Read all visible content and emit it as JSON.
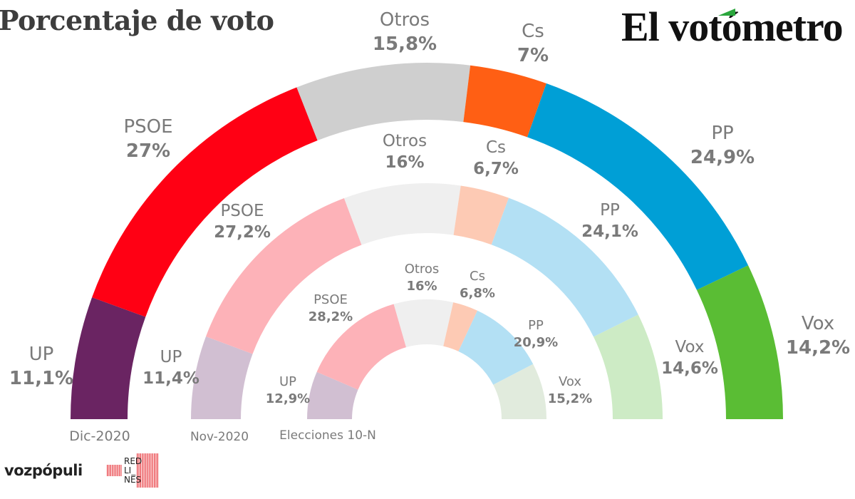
{
  "header": {
    "title": "Porcentaje de voto",
    "brand": "El votómetro",
    "brand_accent_color": "#2aa63c"
  },
  "footer": {
    "logo_vozpopuli": "vozpópuli",
    "logo_redlines": [
      "RED",
      "LI_",
      "NES"
    ],
    "redlines_color": "#e8353b"
  },
  "chart_data": {
    "type": "pie",
    "subtype": "concentric-semicircle-donut",
    "title": "Porcentaje de voto",
    "order": "left-to-right",
    "rings": [
      {
        "label": "Dic-2020",
        "position": "outer",
        "series": [
          {
            "name": "UP",
            "value": 11.1,
            "label": "11,1%",
            "color": "#6a2462"
          },
          {
            "name": "PSOE",
            "value": 27.0,
            "label": "27%",
            "color": "#ff0014"
          },
          {
            "name": "Otros",
            "value": 15.8,
            "label": "15,8%",
            "color": "#cfcfcf"
          },
          {
            "name": "Cs",
            "value": 7.0,
            "label": "7%",
            "color": "#ff5f14"
          },
          {
            "name": "PP",
            "value": 24.9,
            "label": "24,9%",
            "color": "#009fd6"
          },
          {
            "name": "Vox",
            "value": 14.2,
            "label": "14,2%",
            "color": "#5abd34"
          }
        ]
      },
      {
        "label": "Nov-2020",
        "position": "middle",
        "series": [
          {
            "name": "UP",
            "value": 11.4,
            "label": "11,4%",
            "color": "#d1bfd2"
          },
          {
            "name": "PSOE",
            "value": 27.2,
            "label": "27,2%",
            "color": "#fdb2b8"
          },
          {
            "name": "Otros",
            "value": 16.0,
            "label": "16%",
            "color": "#efefef"
          },
          {
            "name": "Cs",
            "value": 6.7,
            "label": "6,7%",
            "color": "#fdcab4"
          },
          {
            "name": "PP",
            "value": 24.1,
            "label": "24,1%",
            "color": "#b3e0f4"
          },
          {
            "name": "Vox",
            "value": 14.6,
            "label": "14,6%",
            "color": "#cdebc5"
          }
        ]
      },
      {
        "label": "Elecciones 10-N",
        "position": "inner",
        "series": [
          {
            "name": "UP",
            "value": 12.9,
            "label": "12,9%",
            "color": "#d1bfd2"
          },
          {
            "name": "PSOE",
            "value": 28.2,
            "label": "28,2%",
            "color": "#fdb2b8"
          },
          {
            "name": "Otros",
            "value": 16.0,
            "label": "16%",
            "color": "#efefef"
          },
          {
            "name": "Cs",
            "value": 6.8,
            "label": "6,8%",
            "color": "#fdcab4"
          },
          {
            "name": "PP",
            "value": 20.9,
            "label": "20,9%",
            "color": "#b3e0f4"
          },
          {
            "name": "Vox",
            "value": 15.2,
            "label": "15,2%",
            "color": "#e1ebdd"
          }
        ]
      }
    ],
    "legend": "none",
    "label_color": "#7a7a7a"
  }
}
